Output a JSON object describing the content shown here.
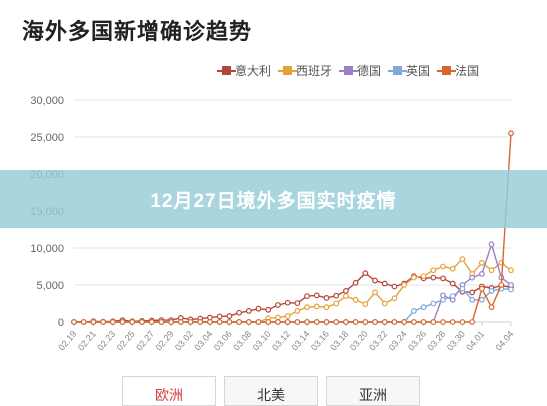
{
  "page": {
    "title": "海外多国新增确诊趋势"
  },
  "banner": {
    "text": "12月27日境外多国实时疫情"
  },
  "tabs": [
    {
      "label": "欧洲",
      "active": true
    },
    {
      "label": "北美",
      "active": false
    },
    {
      "label": "亚洲",
      "active": false
    }
  ],
  "chart_data": {
    "type": "line",
    "title": "海外多国新增确诊趋势",
    "xlabel": "",
    "ylabel": "",
    "ylim": [
      0,
      30000
    ],
    "yticks": [
      "0",
      "5,000",
      "10,000",
      "15,000",
      "20,000",
      "25,000",
      "30,000"
    ],
    "ytick_values": [
      0,
      5000,
      10000,
      15000,
      20000,
      25000,
      30000
    ],
    "grid": true,
    "legend_position": "top-right",
    "x": [
      "02.19",
      "02.20",
      "02.21",
      "02.22",
      "02.23",
      "02.24",
      "02.25",
      "02.26",
      "02.27",
      "02.28",
      "02.29",
      "03.01",
      "03.02",
      "03.03",
      "03.04",
      "03.05",
      "03.06",
      "03.07",
      "03.08",
      "03.09",
      "03.10",
      "03.11",
      "03.12",
      "03.13",
      "03.14",
      "03.15",
      "03.16",
      "03.17",
      "03.18",
      "03.19",
      "03.20",
      "03.21",
      "03.22",
      "03.23",
      "03.24",
      "03.25",
      "03.26",
      "03.27",
      "03.28",
      "03.29",
      "03.30",
      "03.31",
      "04.01",
      "04.02",
      "04.03",
      "04.04"
    ],
    "xticks": [
      "02.19",
      "02.21",
      "02.23",
      "02.25",
      "02.27",
      "02.29",
      "03.02",
      "03.04",
      "03.06",
      "03.08",
      "03.10",
      "03.12",
      "03.14",
      "03.16",
      "03.18",
      "03.20",
      "03.22",
      "03.24",
      "03.26",
      "03.28",
      "03.30",
      "04.01",
      "04.04"
    ],
    "series": [
      {
        "name": "意大利",
        "color": "#b5473a",
        "values": [
          0,
          0,
          100,
          50,
          100,
          250,
          100,
          150,
          200,
          250,
          250,
          550,
          350,
          450,
          600,
          750,
          800,
          1250,
          1500,
          1800,
          1650,
          2300,
          2600,
          2550,
          3500,
          3600,
          3250,
          3550,
          4200,
          5300,
          6600,
          5600,
          5200,
          4800,
          5200,
          6200,
          5900,
          6000,
          5900,
          5200,
          4100,
          4000,
          4800,
          4600,
          4900,
          4700
        ]
      },
      {
        "name": "西班牙",
        "color": "#e6a23a",
        "values": [
          0,
          0,
          0,
          0,
          0,
          0,
          0,
          0,
          0,
          0,
          0,
          0,
          0,
          0,
          0,
          0,
          0,
          0,
          0,
          0,
          500,
          600,
          800,
          1500,
          2000,
          2100,
          2000,
          2500,
          3500,
          3000,
          2400,
          4000,
          2500,
          3200,
          5000,
          6000,
          6200,
          7000,
          7500,
          7200,
          8500,
          6500,
          8000,
          7000,
          8000,
          7000
        ]
      },
      {
        "name": "德国",
        "color": "#9b7fc8",
        "values": [
          0,
          0,
          0,
          0,
          0,
          0,
          0,
          0,
          0,
          0,
          0,
          0,
          0,
          0,
          0,
          0,
          0,
          0,
          0,
          0,
          0,
          0,
          0,
          0,
          0,
          0,
          0,
          0,
          0,
          0,
          0,
          0,
          0,
          0,
          0,
          0,
          0,
          0,
          3600,
          3000,
          5000,
          6000,
          6500,
          10500,
          6000,
          5000
        ]
      },
      {
        "name": "英国",
        "color": "#82a8db",
        "values": [
          0,
          0,
          0,
          0,
          0,
          0,
          0,
          0,
          0,
          0,
          0,
          0,
          0,
          0,
          0,
          0,
          0,
          0,
          0,
          0,
          0,
          0,
          0,
          0,
          0,
          0,
          0,
          0,
          0,
          0,
          0,
          0,
          0,
          0,
          0,
          1500,
          2000,
          2500,
          3000,
          3500,
          4500,
          3000,
          3000,
          4200,
          4500,
          4400
        ]
      },
      {
        "name": "法国",
        "color": "#d7682c",
        "values": [
          0,
          0,
          0,
          0,
          0,
          0,
          0,
          0,
          0,
          0,
          0,
          0,
          0,
          0,
          0,
          0,
          0,
          0,
          0,
          0,
          0,
          0,
          0,
          0,
          0,
          0,
          0,
          0,
          0,
          0,
          0,
          0,
          0,
          0,
          0,
          0,
          0,
          0,
          0,
          0,
          0,
          0,
          4500,
          2000,
          5000,
          25500
        ]
      }
    ]
  }
}
